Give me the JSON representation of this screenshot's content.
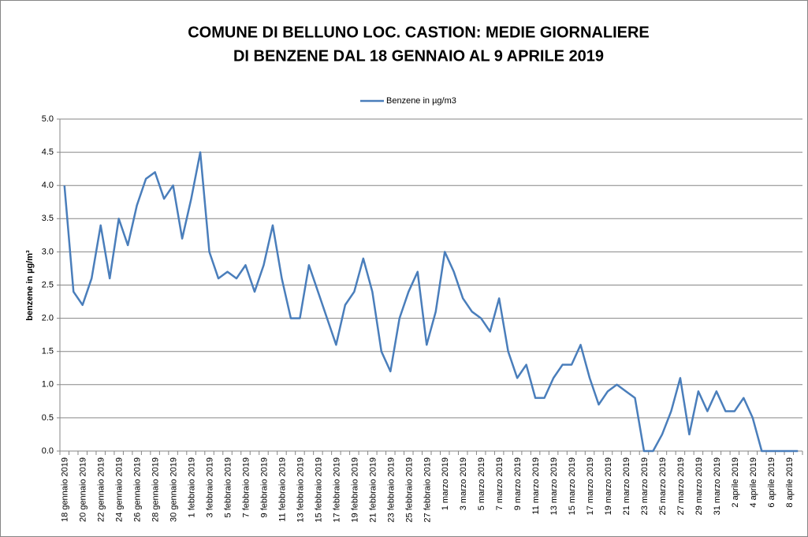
{
  "chart_data": {
    "type": "line",
    "title": "COMUNE DI BELLUNO LOC. CASTION: MEDIE GIORNALIERE",
    "subtitle": "DI BENZENE DAL 18 GENNAIO AL 9 APRILE 2019",
    "y_label": "benzene in µg/m³",
    "categories": [
      "18 gennaio 2019",
      null,
      "20 gennaio 2019",
      null,
      "22 gennaio 2019",
      null,
      "24 gennaio 2019",
      null,
      "26 gennaio 2019",
      null,
      "28 gennaio 2019",
      null,
      "30 gennaio 2019",
      null,
      "1 febbraio 2019",
      null,
      "3 febbraio 2019",
      null,
      "5 febbraio 2019",
      null,
      "7 febbraio 2019",
      null,
      "9 febbraio 2019",
      null,
      "11 febbraio 2019",
      null,
      "13 febbraio 2019",
      null,
      "15 febbraio 2019",
      null,
      "17 febbraio 2019",
      null,
      "19 febbraio 2019",
      null,
      "21 febbraio 2019",
      null,
      "23 febbraio 2019",
      null,
      "25 febbraio 2019",
      null,
      "27 febbraio 2019",
      null,
      "1 marzo 2019",
      null,
      "3 marzo 2019",
      null,
      "5 marzo 2019",
      null,
      "7 marzo 2019",
      null,
      "9 marzo 2019",
      null,
      "11 marzo 2019",
      null,
      "13 marzo 2019",
      null,
      "15 marzo 2019",
      null,
      "17 marzo 2019",
      null,
      "19 marzo 2019",
      null,
      "21 marzo 2019",
      null,
      "23 marzo 2019",
      null,
      "25 marzo 2019",
      null,
      "27 marzo 2019",
      null,
      "29 marzo 2019",
      null,
      "31 marzo 2019",
      null,
      "2 aprile 2019",
      null,
      "4 aprile 2019",
      null,
      "6 aprile 2019",
      null,
      "8 aprile 2019",
      null
    ],
    "series": [
      {
        "name": "Benzene in µg/m3",
        "color": "#4a7ebb",
        "values": [
          4.0,
          2.4,
          2.2,
          2.6,
          3.4,
          2.6,
          3.5,
          3.1,
          3.7,
          4.1,
          4.2,
          3.8,
          4.0,
          3.2,
          3.8,
          4.5,
          3.0,
          2.6,
          2.7,
          2.6,
          2.8,
          2.4,
          2.8,
          3.4,
          2.6,
          2.0,
          2.0,
          2.8,
          2.4,
          2.0,
          1.6,
          2.2,
          2.4,
          2.9,
          2.4,
          1.5,
          1.2,
          2.0,
          2.4,
          2.7,
          1.6,
          2.1,
          3.0,
          2.7,
          2.3,
          2.1,
          2.0,
          1.8,
          2.3,
          1.5,
          1.1,
          1.3,
          0.8,
          0.8,
          1.1,
          1.3,
          1.3,
          1.6,
          1.1,
          0.7,
          0.9,
          1.0,
          0.9,
          0.8,
          0.0,
          0.0,
          0.25,
          0.6,
          1.1,
          0.25,
          0.9,
          0.6,
          0.9,
          0.6,
          0.6,
          0.8,
          0.5,
          0.0,
          0.0,
          0.0,
          0.0,
          0.0
        ]
      }
    ],
    "ylim": [
      0,
      5
    ],
    "yticks": [
      {
        "value": 0,
        "label": "0.0"
      },
      0.5,
      {
        "value": 1,
        "label": "1.0"
      },
      1.5,
      {
        "value": 2,
        "label": "2.0"
      },
      2.5,
      {
        "value": 3,
        "label": "3.0"
      },
      3.5,
      {
        "value": 4,
        "label": "4.0"
      },
      4.5,
      {
        "value": 5,
        "label": "5.0"
      }
    ],
    "grid": true,
    "legend": "top"
  }
}
